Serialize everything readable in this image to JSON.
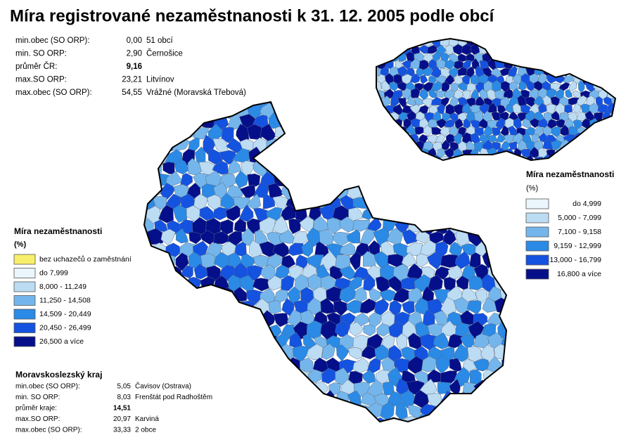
{
  "header": {
    "title": "Míra registrované nezaměstnanosti k 31. 12. 2005 podle obcí"
  },
  "national_stats": {
    "rows": [
      {
        "label": "min.obec (SO ORP):",
        "value": "0,00",
        "note": "51 obcí"
      },
      {
        "label": "min. SO ORP:",
        "value": "2,90",
        "note": "Černošice"
      },
      {
        "label": "průměr ČR:",
        "value": "9,16",
        "note": null
      },
      {
        "label": "max.SO ORP:",
        "value": "23,21",
        "note": "Litvínov"
      },
      {
        "label": "max.obec (SO ORP):",
        "value": "54,55",
        "note": "Vrážné (Moravská Třebová)"
      }
    ]
  },
  "regional_legend": {
    "title": "Míra nezaměstnanosti",
    "unit": "(%)",
    "items": [
      {
        "label": "bez uchazečů o zaměstnání",
        "color": "#f7ef6a"
      },
      {
        "label": "do 7,999",
        "color": "#eaf6fb"
      },
      {
        "label": "8,000 - 11,249",
        "color": "#bcdcf4"
      },
      {
        "label": "11,250 - 14,508",
        "color": "#74b6ec"
      },
      {
        "label": "14,509 - 20,449",
        "color": "#2a8ae6"
      },
      {
        "label": "20,450 - 26,499",
        "color": "#1452e0"
      },
      {
        "label": "26,500 a více",
        "color": "#050f8a"
      }
    ]
  },
  "national_legend": {
    "title": "Míra nezaměstnanosti",
    "unit": "(%)",
    "items": [
      {
        "label": "do 4,999",
        "color": "#eaf6fb"
      },
      {
        "label": "5,000 -  7,099",
        "color": "#bcdcf4"
      },
      {
        "label": "7,100 -  9,158",
        "color": "#74b6ec"
      },
      {
        "label": "9,159 - 12,999",
        "color": "#2a8ae6"
      },
      {
        "label": "13,000 - 16,799",
        "color": "#1452e0"
      },
      {
        "label": "16,800 a více",
        "color": "#050f8a"
      }
    ]
  },
  "regional_stats": {
    "title": "Moravskoslezský kraj",
    "rows": [
      {
        "label": "min.obec (SO ORP):",
        "value": "5,05",
        "note": "Čavisov (Ostrava)"
      },
      {
        "label": "min. SO ORP:",
        "value": "8,03",
        "note": "Frenštát pod Radhoštěm"
      },
      {
        "label": "průměr kraje:",
        "value": "14,51",
        "note": null
      },
      {
        "label": "max.SO ORP:",
        "value": "20,97",
        "note": "Karviná"
      },
      {
        "label": "max.obec (SO ORP):",
        "value": "33,33",
        "note": "2 obce"
      }
    ]
  }
}
